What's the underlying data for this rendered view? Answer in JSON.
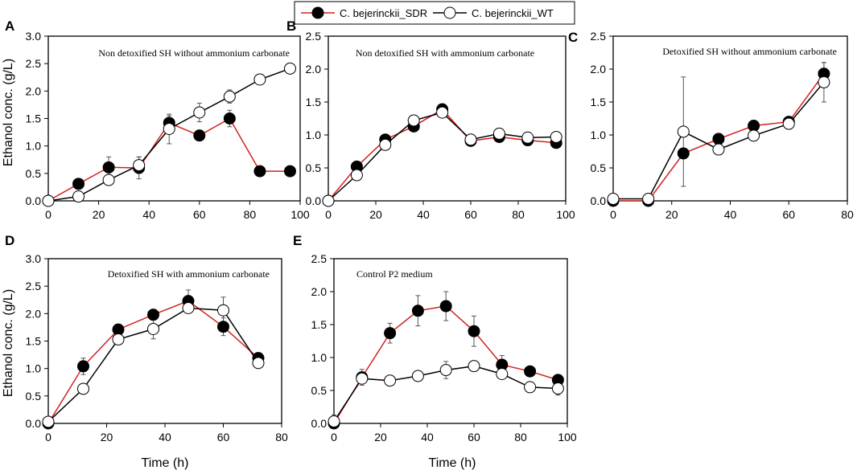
{
  "figure": {
    "legend": {
      "sdr_label": "C. bejerinckii_SDR",
      "wt_label": "C. bejerinckii_WT",
      "sdr_line_color": "#d42020",
      "wt_line_color": "#000000",
      "placement": "top-center"
    },
    "xlabel": "Time (h)",
    "ylabel": "Ethanol conc. (g/L)"
  },
  "chart_data": [
    {
      "id": "A",
      "type": "line",
      "title": "Non detoxified SH without ammonium carbonate",
      "xlim": [
        0,
        100
      ],
      "ylim": [
        0,
        3.0
      ],
      "xticks": [
        0,
        20,
        40,
        60,
        80,
        100
      ],
      "yticks": [
        0.0,
        0.5,
        1.0,
        1.5,
        2.0,
        2.5,
        3.0
      ],
      "series": [
        {
          "name": "C. bejerinckii_SDR",
          "x": [
            0,
            12,
            24,
            36,
            48,
            60,
            72,
            84,
            96
          ],
          "y": [
            0,
            0.31,
            0.61,
            0.6,
            1.42,
            1.19,
            1.5,
            0.54,
            0.54
          ],
          "err": [
            0,
            0.05,
            0.19,
            0.2,
            0.13,
            0.05,
            0.15,
            0.03,
            0.03
          ]
        },
        {
          "name": "C. bejerinckii_WT",
          "x": [
            0,
            12,
            24,
            36,
            48,
            60,
            72,
            84,
            96
          ],
          "y": [
            0,
            0.08,
            0.38,
            0.65,
            1.31,
            1.61,
            1.9,
            2.21,
            2.41
          ],
          "err": [
            0,
            0.03,
            0.05,
            0.15,
            0.27,
            0.17,
            0.12,
            0.03,
            0.03
          ]
        }
      ]
    },
    {
      "id": "B",
      "type": "line",
      "title": "Non detoxified SH with ammonium carbonate",
      "xlim": [
        0,
        100
      ],
      "ylim": [
        0,
        2.5
      ],
      "xticks": [
        0,
        20,
        40,
        60,
        80,
        100
      ],
      "yticks": [
        0.0,
        0.5,
        1.0,
        1.5,
        2.0,
        2.5
      ],
      "series": [
        {
          "name": "C. bejerinckii_SDR",
          "x": [
            0,
            12,
            24,
            36,
            48,
            60,
            72,
            84,
            96
          ],
          "y": [
            0,
            0.52,
            0.93,
            1.13,
            1.39,
            0.91,
            0.97,
            0.92,
            0.88
          ],
          "err": [
            0,
            0.04,
            0.07,
            0.07,
            0.06,
            0.04,
            0.06,
            0.04,
            0.05
          ]
        },
        {
          "name": "C. bejerinckii_WT",
          "x": [
            0,
            12,
            24,
            36,
            48,
            60,
            72,
            84,
            96
          ],
          "y": [
            0,
            0.39,
            0.85,
            1.22,
            1.34,
            0.93,
            1.02,
            0.96,
            0.97
          ],
          "err": [
            0,
            0.03,
            0.06,
            0.06,
            0.05,
            0.04,
            0.08,
            0.04,
            0.04
          ]
        }
      ]
    },
    {
      "id": "C",
      "type": "line",
      "title": "Detoxified SH without ammonium carbonate",
      "xlim": [
        0,
        80
      ],
      "ylim": [
        0,
        2.5
      ],
      "xticks": [
        0,
        20,
        40,
        60,
        80
      ],
      "yticks": [
        0.0,
        0.5,
        1.0,
        1.5,
        2.0,
        2.5
      ],
      "series": [
        {
          "name": "C. bejerinckii_SDR",
          "x": [
            0,
            12,
            24,
            36,
            48,
            60,
            72
          ],
          "y": [
            0,
            0,
            0.72,
            0.94,
            1.14,
            1.2,
            1.93
          ],
          "err": [
            0,
            0,
            0.05,
            0.05,
            0.05,
            0.06,
            0.17
          ]
        },
        {
          "name": "C. bejerinckii_WT",
          "x": [
            0,
            12,
            24,
            36,
            48,
            60,
            72
          ],
          "y": [
            0.03,
            0.03,
            1.05,
            0.78,
            0.99,
            1.17,
            1.8
          ],
          "err": [
            0,
            0,
            0.83,
            0.05,
            0.04,
            0.08,
            0.3
          ]
        }
      ]
    },
    {
      "id": "D",
      "type": "line",
      "title": "Detoxified SH with ammonium carbonate",
      "xlim": [
        0,
        80
      ],
      "ylim": [
        0,
        3.0
      ],
      "xticks": [
        0,
        20,
        40,
        60,
        80
      ],
      "yticks": [
        0.0,
        0.5,
        1.0,
        1.5,
        2.0,
        2.5,
        3.0
      ],
      "series": [
        {
          "name": "C. bejerinckii_SDR",
          "x": [
            0,
            12,
            24,
            36,
            48,
            60,
            72
          ],
          "y": [
            0,
            1.04,
            1.71,
            1.98,
            2.23,
            1.76,
            1.19
          ],
          "err": [
            0,
            0.15,
            0.05,
            0.1,
            0.2,
            0.16,
            0.05
          ]
        },
        {
          "name": "C. bejerinckii_WT",
          "x": [
            0,
            12,
            24,
            36,
            48,
            60,
            72
          ],
          "y": [
            0.03,
            0.63,
            1.53,
            1.72,
            2.1,
            2.06,
            1.1
          ],
          "err": [
            0,
            0.03,
            0.05,
            0.18,
            0.08,
            0.24,
            0.03
          ]
        }
      ]
    },
    {
      "id": "E",
      "type": "line",
      "title": "Control P2 medium",
      "xlim": [
        0,
        100
      ],
      "ylim": [
        0,
        2.5
      ],
      "xticks": [
        0,
        20,
        40,
        60,
        80,
        100
      ],
      "yticks": [
        0.0,
        0.5,
        1.0,
        1.5,
        2.0,
        2.5
      ],
      "series": [
        {
          "name": "C. bejerinckii_SDR",
          "x": [
            0,
            12,
            24,
            36,
            48,
            60,
            72,
            84,
            96
          ],
          "y": [
            0,
            0.7,
            1.37,
            1.71,
            1.78,
            1.4,
            0.89,
            0.79,
            0.66
          ],
          "err": [
            0,
            0.12,
            0.15,
            0.23,
            0.22,
            0.23,
            0.14,
            0.05,
            0.05
          ]
        },
        {
          "name": "C. bejerinckii_WT",
          "x": [
            0,
            12,
            24,
            36,
            48,
            60,
            72,
            84,
            96
          ],
          "y": [
            0.03,
            0.68,
            0.65,
            0.72,
            0.81,
            0.87,
            0.75,
            0.55,
            0.53
          ],
          "err": [
            0.1,
            0.07,
            0.03,
            0.03,
            0.13,
            0.04,
            0.03,
            0.07,
            0.1
          ]
        }
      ]
    }
  ]
}
